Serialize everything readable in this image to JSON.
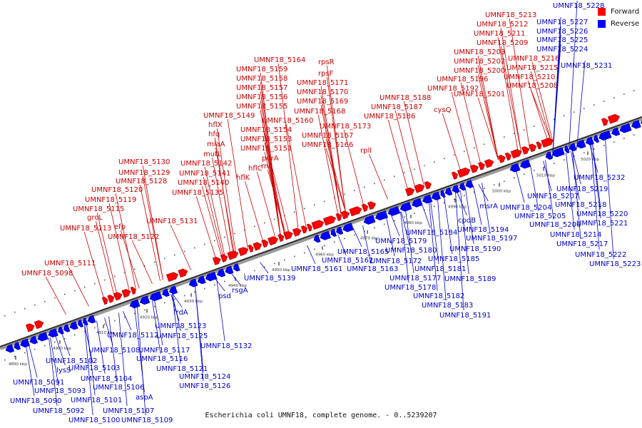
{
  "title": "Escherichia coli UMNF18, complete genome. - 0..5239207",
  "legend": [
    {
      "label": "Forward",
      "color": "#ff0000"
    },
    {
      "label": "Reverse",
      "color": "#0000ff"
    }
  ],
  "colors": {
    "forward": "#ff0000",
    "reverse": "#0000ff",
    "forward_label": "#cc0000",
    "reverse_label": "#0000cc",
    "axis": "#666666"
  },
  "axis_ticks": [
    "4890 kbp",
    "4900 kbp",
    "4910 kbp",
    "4920 kbp",
    "4930 kbp",
    "4940 kbp",
    "4950 kbp",
    "4960 kbp",
    "4970 kbp",
    "4980 kbp",
    "4990 kbp",
    "5000 kbp",
    "5010 kbp",
    "5020 kbp"
  ],
  "forward_genes": [
    "UMNF18_5213",
    "UMNF18_5212",
    "UMNF18_5211",
    "UMNF18_5209",
    "UMNF18_5203",
    "UMNF18_5216",
    "UMNF18_5202",
    "UMNF18_5215",
    "UMNF18_5200",
    "UMNF18_5210",
    "UMNF18_5196",
    "UMNF18_5208",
    "UMNF18_5192",
    "UMNF18_5201",
    "UMNF18_5188",
    "UMNF18_5187",
    "cysQ",
    "UMNF18_5186",
    "UMNF18_5164",
    "rpsR",
    "UMNF18_5159",
    "rpsF",
    "UMNF18_5158",
    "UMNF18_5171",
    "UMNF18_5157",
    "UMNF18_5170",
    "UMNF18_5156",
    "UMNF18_5169",
    "UMNF18_5155",
    "UMNF18_5168",
    "UMNF18_5149",
    "UMNF18_5160",
    "hflX",
    "UMNF18_5173",
    "UMNF18_5154",
    "hfq",
    "UMNF18_5153",
    "UMNF18_5167",
    "miaA",
    "UMNF18_5151",
    "UMNF18_5166",
    "rplI",
    "mutL",
    "purA",
    "UMNF18_5142",
    "hflC",
    "rnr",
    "UMNF18_5141",
    "hflK",
    "UMNF18_5140",
    "UMNF18_5135",
    "UMNF18_5130",
    "UMNF18_5129",
    "UMNF18_5128",
    "UMNF18_5120",
    "UMNF18_5119",
    "UMNF18_5115",
    "groL",
    "efp",
    "UMNF18_5113",
    "UMNF18_5122",
    "UMNF18_5131",
    "UMNF18_5111",
    "UMNF18_5098"
  ],
  "reverse_genes": [
    "UMNF18_5228",
    "UMNF18_5227",
    "UMNF18_5226",
    "UMNF18_5225",
    "UMNF18_5224",
    "UMNF18_5231",
    "UMNF18_5232",
    "UMNF18_5207",
    "UMNF18_5219",
    "UMNF18_5218",
    "UMNF18_5204",
    "UMNF18_5205",
    "UMNF18_5220",
    "UMNF18_5206",
    "UMNF18_5221",
    "UMNF18_5214",
    "UMNF18_5217",
    "UMNF18_5222",
    "UMNF18_5223",
    "msrA",
    "cpdB",
    "UMNF18_5194",
    "UMNF18_5197",
    "UMNF18_5184",
    "UMNF18_5190",
    "UMNF18_5179",
    "UMNF18_5180",
    "UMNF18_5165",
    "UMNF18_5185",
    "UMNF18_5172",
    "UMNF18_5181",
    "UMNF18_5162",
    "UMNF18_5163",
    "UMNF18_5161",
    "UMNF18_5177",
    "UMNF18_5189",
    "UMNF18_5178",
    "UMNF18_5182",
    "UMNF18_5183",
    "UMNF18_5191",
    "UMNF18_5139",
    "rsgA",
    "psd",
    "frdA",
    "UMNF18_5123",
    "UMNF18_5112",
    "UMNF18_5125",
    "UMNF18_5132",
    "UMNF18_5108",
    "UMNF18_5117",
    "UMNF18_5102",
    "UMNF18_5116",
    "UMNF18_5103",
    "UMNF18_5121",
    "UMNF18_5124",
    "UMNF18_5104",
    "lysS",
    "UMNF18_5126",
    "UMNF18_5091",
    "UMNF18_5106",
    "aspA",
    "UMNF18_5093",
    "UMNF18_5101",
    "UMNF18_5090",
    "UMNF18_5107",
    "UMNF18_5092",
    "UMNF18_5100",
    "UMNF18_5109"
  ]
}
